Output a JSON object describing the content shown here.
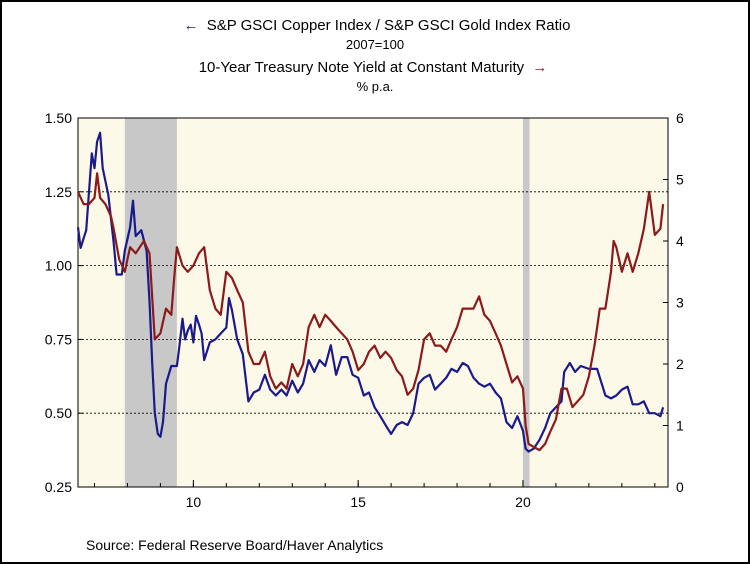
{
  "legend": {
    "series1_title": "S&P GSCI Copper Index / S&P GSCI Gold Index Ratio",
    "series1_unit": "2007=100",
    "series2_title": "10-Year Treasury Note Yield at Constant Maturity",
    "series2_unit": "% p.a.",
    "series1_color": "#1a1a8c",
    "series2_color": "#8b1a1a"
  },
  "source": "Source:  Federal Reserve Board/Haver Analytics",
  "chart_data": {
    "type": "line",
    "plot_background": "#fdf9e8",
    "recession_color": "#c8c8c8",
    "x_range": [
      2006.5,
      2024.4
    ],
    "x_ticks": [
      {
        "value": 2010,
        "label": "10"
      },
      {
        "value": 2015,
        "label": "15"
      },
      {
        "value": 2020,
        "label": "20"
      }
    ],
    "left_axis": {
      "range": [
        0.25,
        1.5
      ],
      "ticks": [
        "0.25",
        "0.50",
        "0.75",
        "1.00",
        "1.25",
        "1.50"
      ],
      "tick_values": [
        0.25,
        0.5,
        0.75,
        1.0,
        1.25,
        1.5
      ]
    },
    "right_axis": {
      "range": [
        0,
        6
      ],
      "ticks": [
        "0",
        "1",
        "2",
        "3",
        "4",
        "5",
        "6"
      ],
      "tick_values": [
        0,
        1,
        2,
        3,
        4,
        5,
        6
      ]
    },
    "grid": "horizontal dashed",
    "recession_bands": [
      [
        2007.92,
        2009.5
      ],
      [
        2020.0,
        2020.2
      ]
    ],
    "series": [
      {
        "axis": "left",
        "color": "#1a1a8c",
        "points": [
          [
            2006.5,
            1.13
          ],
          [
            2006.58,
            1.06
          ],
          [
            2006.75,
            1.12
          ],
          [
            2006.92,
            1.38
          ],
          [
            2007.0,
            1.33
          ],
          [
            2007.08,
            1.42
          ],
          [
            2007.17,
            1.45
          ],
          [
            2007.25,
            1.33
          ],
          [
            2007.42,
            1.24
          ],
          [
            2007.58,
            1.08
          ],
          [
            2007.67,
            0.97
          ],
          [
            2007.83,
            0.97
          ],
          [
            2007.92,
            1.05
          ],
          [
            2008.08,
            1.13
          ],
          [
            2008.17,
            1.22
          ],
          [
            2008.25,
            1.1
          ],
          [
            2008.42,
            1.12
          ],
          [
            2008.58,
            1.05
          ],
          [
            2008.67,
            0.88
          ],
          [
            2008.75,
            0.67
          ],
          [
            2008.83,
            0.5
          ],
          [
            2008.92,
            0.43
          ],
          [
            2009.0,
            0.42
          ],
          [
            2009.08,
            0.47
          ],
          [
            2009.17,
            0.6
          ],
          [
            2009.33,
            0.66
          ],
          [
            2009.5,
            0.66
          ],
          [
            2009.58,
            0.73
          ],
          [
            2009.67,
            0.82
          ],
          [
            2009.75,
            0.75
          ],
          [
            2009.83,
            0.78
          ],
          [
            2009.92,
            0.8
          ],
          [
            2010.0,
            0.74
          ],
          [
            2010.08,
            0.83
          ],
          [
            2010.17,
            0.8
          ],
          [
            2010.25,
            0.77
          ],
          [
            2010.33,
            0.68
          ],
          [
            2010.5,
            0.74
          ],
          [
            2010.67,
            0.75
          ],
          [
            2010.83,
            0.77
          ],
          [
            2011.0,
            0.79
          ],
          [
            2011.08,
            0.89
          ],
          [
            2011.17,
            0.85
          ],
          [
            2011.33,
            0.75
          ],
          [
            2011.5,
            0.7
          ],
          [
            2011.67,
            0.54
          ],
          [
            2011.83,
            0.57
          ],
          [
            2012.0,
            0.58
          ],
          [
            2012.17,
            0.63
          ],
          [
            2012.33,
            0.58
          ],
          [
            2012.5,
            0.56
          ],
          [
            2012.67,
            0.58
          ],
          [
            2012.83,
            0.56
          ],
          [
            2013.0,
            0.61
          ],
          [
            2013.17,
            0.57
          ],
          [
            2013.33,
            0.6
          ],
          [
            2013.5,
            0.68
          ],
          [
            2013.67,
            0.64
          ],
          [
            2013.83,
            0.68
          ],
          [
            2014.0,
            0.66
          ],
          [
            2014.17,
            0.73
          ],
          [
            2014.33,
            0.63
          ],
          [
            2014.5,
            0.69
          ],
          [
            2014.67,
            0.69
          ],
          [
            2014.83,
            0.63
          ],
          [
            2015.0,
            0.62
          ],
          [
            2015.17,
            0.56
          ],
          [
            2015.33,
            0.57
          ],
          [
            2015.5,
            0.52
          ],
          [
            2015.67,
            0.49
          ],
          [
            2015.83,
            0.46
          ],
          [
            2016.0,
            0.43
          ],
          [
            2016.17,
            0.46
          ],
          [
            2016.33,
            0.47
          ],
          [
            2016.5,
            0.46
          ],
          [
            2016.67,
            0.5
          ],
          [
            2016.83,
            0.6
          ],
          [
            2017.0,
            0.62
          ],
          [
            2017.17,
            0.63
          ],
          [
            2017.33,
            0.58
          ],
          [
            2017.5,
            0.6
          ],
          [
            2017.67,
            0.62
          ],
          [
            2017.83,
            0.65
          ],
          [
            2018.0,
            0.64
          ],
          [
            2018.17,
            0.67
          ],
          [
            2018.33,
            0.66
          ],
          [
            2018.5,
            0.62
          ],
          [
            2018.67,
            0.6
          ],
          [
            2018.83,
            0.59
          ],
          [
            2019.0,
            0.6
          ],
          [
            2019.17,
            0.57
          ],
          [
            2019.33,
            0.55
          ],
          [
            2019.5,
            0.47
          ],
          [
            2019.67,
            0.45
          ],
          [
            2019.83,
            0.49
          ],
          [
            2020.0,
            0.44
          ],
          [
            2020.08,
            0.38
          ],
          [
            2020.17,
            0.37
          ],
          [
            2020.33,
            0.38
          ],
          [
            2020.5,
            0.41
          ],
          [
            2020.67,
            0.45
          ],
          [
            2020.83,
            0.5
          ],
          [
            2021.0,
            0.52
          ],
          [
            2021.17,
            0.54
          ],
          [
            2021.25,
            0.64
          ],
          [
            2021.42,
            0.67
          ],
          [
            2021.58,
            0.64
          ],
          [
            2021.75,
            0.66
          ],
          [
            2022.0,
            0.65
          ],
          [
            2022.25,
            0.65
          ],
          [
            2022.5,
            0.56
          ],
          [
            2022.67,
            0.55
          ],
          [
            2022.83,
            0.56
          ],
          [
            2023.0,
            0.58
          ],
          [
            2023.17,
            0.59
          ],
          [
            2023.33,
            0.53
          ],
          [
            2023.5,
            0.53
          ],
          [
            2023.67,
            0.54
          ],
          [
            2023.83,
            0.5
          ],
          [
            2024.0,
            0.5
          ],
          [
            2024.17,
            0.49
          ],
          [
            2024.25,
            0.52
          ]
        ]
      },
      {
        "axis": "right",
        "color": "#8b1a1a",
        "points": [
          [
            2006.5,
            4.8
          ],
          [
            2006.67,
            4.6
          ],
          [
            2006.83,
            4.6
          ],
          [
            2007.0,
            4.7
          ],
          [
            2007.08,
            5.1
          ],
          [
            2007.17,
            4.7
          ],
          [
            2007.33,
            4.6
          ],
          [
            2007.5,
            4.4
          ],
          [
            2007.58,
            4.2
          ],
          [
            2007.75,
            3.7
          ],
          [
            2007.92,
            3.5
          ],
          [
            2008.0,
            3.7
          ],
          [
            2008.08,
            3.9
          ],
          [
            2008.25,
            3.8
          ],
          [
            2008.5,
            4.0
          ],
          [
            2008.67,
            3.8
          ],
          [
            2008.83,
            2.4
          ],
          [
            2009.0,
            2.5
          ],
          [
            2009.17,
            2.9
          ],
          [
            2009.33,
            2.8
          ],
          [
            2009.42,
            3.4
          ],
          [
            2009.5,
            3.9
          ],
          [
            2009.67,
            3.6
          ],
          [
            2009.83,
            3.5
          ],
          [
            2010.0,
            3.6
          ],
          [
            2010.17,
            3.8
          ],
          [
            2010.33,
            3.9
          ],
          [
            2010.5,
            3.2
          ],
          [
            2010.67,
            2.9
          ],
          [
            2010.83,
            2.8
          ],
          [
            2011.0,
            3.5
          ],
          [
            2011.17,
            3.4
          ],
          [
            2011.33,
            3.2
          ],
          [
            2011.5,
            3.0
          ],
          [
            2011.67,
            2.2
          ],
          [
            2011.83,
            2.0
          ],
          [
            2012.0,
            2.0
          ],
          [
            2012.17,
            2.2
          ],
          [
            2012.33,
            1.8
          ],
          [
            2012.5,
            1.6
          ],
          [
            2012.67,
            1.7
          ],
          [
            2012.83,
            1.6
          ],
          [
            2013.0,
            2.0
          ],
          [
            2013.17,
            1.8
          ],
          [
            2013.33,
            2.0
          ],
          [
            2013.5,
            2.6
          ],
          [
            2013.67,
            2.8
          ],
          [
            2013.83,
            2.6
          ],
          [
            2014.0,
            2.8
          ],
          [
            2014.17,
            2.7
          ],
          [
            2014.33,
            2.6
          ],
          [
            2014.5,
            2.5
          ],
          [
            2014.67,
            2.4
          ],
          [
            2014.83,
            2.2
          ],
          [
            2015.0,
            1.9
          ],
          [
            2015.17,
            2.0
          ],
          [
            2015.33,
            2.2
          ],
          [
            2015.5,
            2.3
          ],
          [
            2015.67,
            2.1
          ],
          [
            2015.83,
            2.2
          ],
          [
            2016.0,
            2.1
          ],
          [
            2016.17,
            1.9
          ],
          [
            2016.33,
            1.8
          ],
          [
            2016.5,
            1.5
          ],
          [
            2016.67,
            1.6
          ],
          [
            2016.83,
            1.9
          ],
          [
            2017.0,
            2.4
          ],
          [
            2017.17,
            2.5
          ],
          [
            2017.33,
            2.3
          ],
          [
            2017.5,
            2.3
          ],
          [
            2017.67,
            2.2
          ],
          [
            2017.83,
            2.4
          ],
          [
            2018.0,
            2.6
          ],
          [
            2018.17,
            2.9
          ],
          [
            2018.33,
            2.9
          ],
          [
            2018.5,
            2.9
          ],
          [
            2018.67,
            3.1
          ],
          [
            2018.83,
            2.8
          ],
          [
            2019.0,
            2.7
          ],
          [
            2019.17,
            2.5
          ],
          [
            2019.33,
            2.3
          ],
          [
            2019.5,
            2.0
          ],
          [
            2019.67,
            1.7
          ],
          [
            2019.83,
            1.8
          ],
          [
            2020.0,
            1.6
          ],
          [
            2020.08,
            1.0
          ],
          [
            2020.17,
            0.7
          ],
          [
            2020.33,
            0.65
          ],
          [
            2020.5,
            0.6
          ],
          [
            2020.67,
            0.7
          ],
          [
            2020.83,
            0.9
          ],
          [
            2021.0,
            1.1
          ],
          [
            2021.17,
            1.6
          ],
          [
            2021.33,
            1.6
          ],
          [
            2021.5,
            1.3
          ],
          [
            2021.67,
            1.4
          ],
          [
            2021.83,
            1.5
          ],
          [
            2022.0,
            1.8
          ],
          [
            2022.17,
            2.3
          ],
          [
            2022.33,
            2.9
          ],
          [
            2022.5,
            2.9
          ],
          [
            2022.67,
            3.5
          ],
          [
            2022.75,
            4.0
          ],
          [
            2022.83,
            3.9
          ],
          [
            2023.0,
            3.5
          ],
          [
            2023.17,
            3.8
          ],
          [
            2023.33,
            3.5
          ],
          [
            2023.5,
            3.8
          ],
          [
            2023.67,
            4.2
          ],
          [
            2023.83,
            4.8
          ],
          [
            2024.0,
            4.1
          ],
          [
            2024.17,
            4.2
          ],
          [
            2024.25,
            4.6
          ]
        ]
      }
    ]
  }
}
